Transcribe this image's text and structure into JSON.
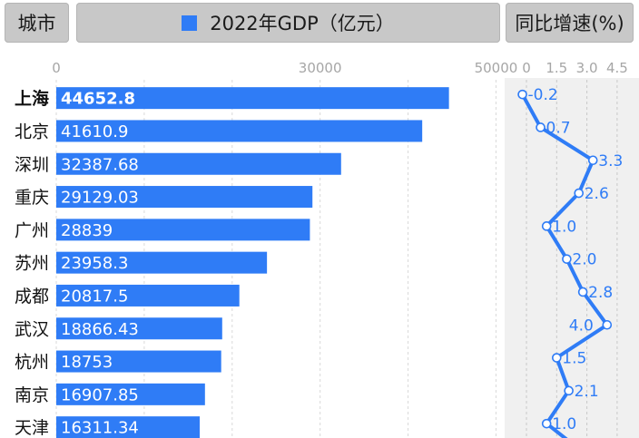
{
  "header": {
    "city_label": "城市",
    "gdp_label": "2022年GDP（亿元）",
    "growth_label": "同比增速(%)"
  },
  "colors": {
    "bar": "#2f7cf6",
    "line": "#2f7cf6",
    "header_bg": "#c8c8c8",
    "growth_panel_bg": "#f0f0f0",
    "axis_text": "#a6a6a6"
  },
  "chart_data": [
    {
      "type": "bar",
      "orientation": "horizontal",
      "categories": [
        "上海",
        "北京",
        "深圳",
        "重庆",
        "广州",
        "苏州",
        "成都",
        "武汉",
        "杭州",
        "南京",
        "天津"
      ],
      "values": [
        44652.8,
        41610.9,
        32387.68,
        29129.03,
        28839,
        23958.3,
        20817.5,
        18866.43,
        18753,
        16907.85,
        16311.34
      ],
      "value_labels": [
        "44652.8",
        "41610.9",
        "32387.68",
        "29129.03",
        "28839",
        "23958.3",
        "20817.5",
        "18866.43",
        "18753",
        "16907.85",
        "16311.34"
      ],
      "xlim": [
        0,
        50000
      ],
      "x_ticks": [
        0,
        30000,
        50000
      ],
      "x_tick_labels": [
        "0",
        "30000",
        "50000"
      ],
      "grid": true
    },
    {
      "type": "line",
      "categories": [
        "上海",
        "北京",
        "深圳",
        "重庆",
        "广州",
        "苏州",
        "成都",
        "武汉",
        "杭州",
        "南京",
        "天津"
      ],
      "values": [
        -0.2,
        0.7,
        3.3,
        2.6,
        1.0,
        2.0,
        2.8,
        4.0,
        1.5,
        2.1,
        1.0
      ],
      "value_labels": [
        "-0.2",
        "0.7",
        "3.3",
        "2.6",
        "1.0",
        "2.0",
        "2.8",
        "4.0",
        "1.5",
        "2.1",
        "1.0"
      ],
      "x_ticks": [
        0,
        1.5,
        3.0,
        4.5
      ],
      "x_tick_labels": [
        "0",
        "1.5",
        "3.0",
        "4.5"
      ],
      "grid": true
    }
  ]
}
